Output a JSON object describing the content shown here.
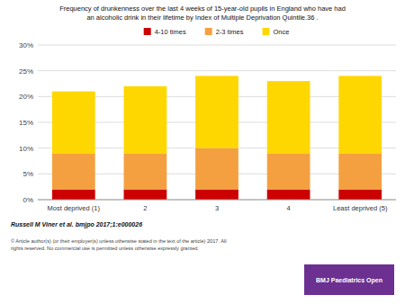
{
  "chart_data": {
    "type": "bar",
    "stacked": true,
    "title": "Frequency of drunkenness over the last 4 weeks of 15-year-old pupils in England who have had\nan alcoholic drink in their lifetime by Index of Multiple Deprivation Quintile.36 .",
    "categories": [
      "Most deprived (1)",
      "2",
      "3",
      "4",
      "Least deprived (5)"
    ],
    "series": [
      {
        "name": "4-10 times",
        "color": "#CC0000",
        "values": [
          2.0,
          2.0,
          2.0,
          2.0,
          2.0
        ]
      },
      {
        "name": "2-3 times",
        "color": "#F4A040",
        "values": [
          7.0,
          7.0,
          8.0,
          7.0,
          7.0
        ]
      },
      {
        "name": "Once",
        "color": "#FFD700",
        "values": [
          12.0,
          13.0,
          14.0,
          14.0,
          15.0
        ]
      }
    ],
    "ylim": [
      0,
      30
    ],
    "yticks": [
      {
        "value": 0,
        "label": "0%"
      },
      {
        "value": 5,
        "label": "5%"
      },
      {
        "value": 10,
        "label": "10%"
      },
      {
        "value": 15,
        "label": "15%"
      },
      {
        "value": 20,
        "label": "20%"
      },
      {
        "value": 25,
        "label": "25%"
      },
      {
        "value": 30,
        "label": "30%"
      }
    ],
    "grid": true,
    "legend": "top",
    "annotations": [
      "Russell M Viner et al. bmjpo 2017;1:e000026",
      "© Article author(s) (or their employer(s) unless otherwise stated in the text of the article) 2017. All\nrights reserved. No commercial use is permitted unless otherwise expressly granted.",
      "BMJ Paediatrics Open"
    ]
  }
}
